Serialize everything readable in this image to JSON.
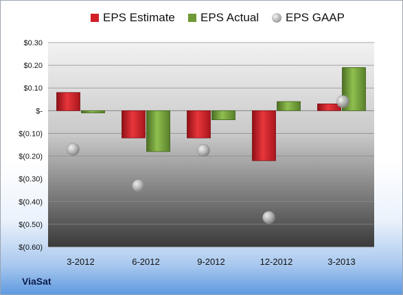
{
  "company": "ViaSat",
  "colors": {
    "estimate": "#d11f26",
    "actual": "#6f9a35",
    "gaap": "#a6a6a6"
  },
  "chart_data": {
    "type": "bar",
    "categories": [
      "3-2012",
      "6-2012",
      "9-2012",
      "12-2012",
      "3-2013"
    ],
    "series": [
      {
        "name": "EPS Estimate",
        "kind": "bar",
        "values": [
          0.08,
          -0.12,
          -0.12,
          -0.22,
          0.03
        ]
      },
      {
        "name": "EPS Actual",
        "kind": "bar",
        "values": [
          -0.01,
          -0.18,
          -0.04,
          0.04,
          0.19
        ]
      },
      {
        "name": "EPS GAAP",
        "kind": "scatter",
        "values": [
          -0.17,
          -0.33,
          -0.175,
          -0.47,
          0.04
        ]
      }
    ],
    "ylim": [
      -0.6,
      0.3
    ],
    "yticks": [
      0.3,
      0.2,
      0.1,
      0,
      -0.1,
      -0.2,
      -0.3,
      -0.4,
      -0.5,
      -0.6
    ],
    "ytick_labels": [
      "$0.30",
      "$0.20",
      "$0.10",
      "$-",
      "$(0.10)",
      "$(0.20)",
      "$(0.30)",
      "$(0.40)",
      "$(0.50)",
      "$(0.60)"
    ],
    "legend_position": "top",
    "grid": true
  }
}
